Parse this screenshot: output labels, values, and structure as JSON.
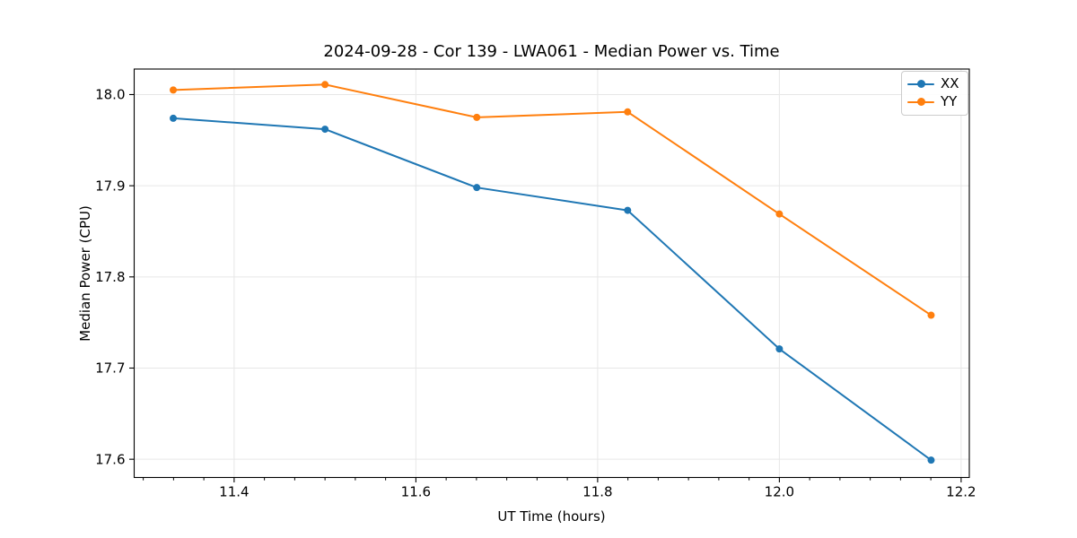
{
  "chart_data": {
    "type": "line",
    "title": "2024-09-28 - Cor 139 - LWA061 - Median Power vs. Time",
    "xlabel": "UT Time (hours)",
    "ylabel": "Median Power (CPU)",
    "xlim": [
      11.29,
      12.209
    ],
    "ylim": [
      17.58,
      18.028
    ],
    "x_major_ticks": [
      11.4,
      11.6,
      11.8,
      12.0,
      12.2
    ],
    "x_tick_labels": [
      "11.4",
      "11.6",
      "11.8",
      "12.0",
      "12.2"
    ],
    "x_minor_tick_start": 11.3,
    "x_minor_tick_step": 0.0333333,
    "y_ticks": [
      17.6,
      17.7,
      17.8,
      17.9,
      18.0
    ],
    "y_tick_labels": [
      "17.6",
      "17.7",
      "17.8",
      "17.9",
      "18.0"
    ],
    "grid": true,
    "legend_position": "upper right",
    "x": [
      11.333,
      11.5,
      11.667,
      11.833,
      12.0,
      12.167
    ],
    "series": [
      {
        "name": "XX",
        "color": "#1f77b4",
        "values": [
          17.974,
          17.962,
          17.898,
          17.873,
          17.721,
          17.599
        ]
      },
      {
        "name": "YY",
        "color": "#ff7f0e",
        "values": [
          18.005,
          18.011,
          17.975,
          17.981,
          17.869,
          17.758
        ]
      }
    ]
  },
  "colors": {
    "grid": "#e7e7e7",
    "spine": "#000000",
    "tick": "#000000",
    "background": "#ffffff",
    "legend_border": "#cccccc"
  }
}
